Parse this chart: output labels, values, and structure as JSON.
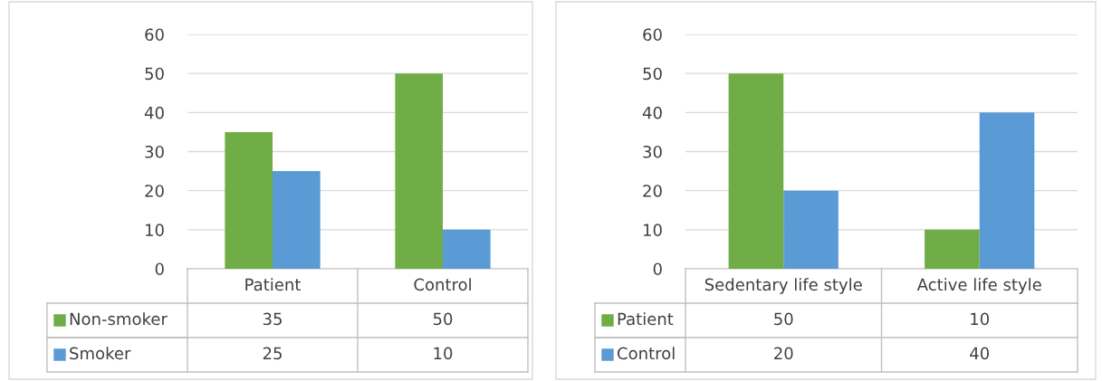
{
  "chart_data": [
    {
      "type": "bar",
      "categories": [
        "Patient",
        "Control"
      ],
      "series": [
        {
          "name": "Non-smoker",
          "color": "#70ad47",
          "values": [
            35,
            50
          ]
        },
        {
          "name": "Smoker",
          "color": "#5b9bd5",
          "values": [
            25,
            10
          ]
        }
      ],
      "ylim": [
        0,
        60
      ],
      "yticks": [
        0,
        10,
        20,
        30,
        40,
        50,
        60
      ],
      "grid": "y",
      "legend": "bottom",
      "data_labels": true
    },
    {
      "type": "bar",
      "categories": [
        "Sedentary life style",
        "Active life style"
      ],
      "series": [
        {
          "name": "Patient",
          "color": "#70ad47",
          "values": [
            50,
            10
          ]
        },
        {
          "name": "Control",
          "color": "#5b9bd5",
          "values": [
            20,
            40
          ]
        }
      ],
      "ylim": [
        0,
        60
      ],
      "yticks": [
        0,
        10,
        20,
        30,
        40,
        50,
        60
      ],
      "grid": "y",
      "legend": "bottom",
      "data_labels": true
    }
  ]
}
